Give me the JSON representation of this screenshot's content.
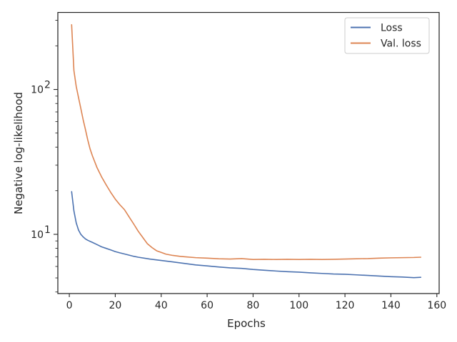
{
  "chart_data": {
    "type": "line",
    "title": "",
    "xlabel": "Epochs",
    "ylabel": "Negative log-likelihood",
    "xlim": [
      -5,
      161
    ],
    "ylim": [
      3.9,
      340
    ],
    "yscale": "log",
    "grid": false,
    "legend_position": "top-right",
    "x_ticks": [
      0,
      20,
      40,
      60,
      80,
      100,
      120,
      140,
      160
    ],
    "x_tick_labels": [
      "0",
      "20",
      "40",
      "60",
      "80",
      "100",
      "120",
      "140",
      "160"
    ],
    "y_major_ticks": [
      {
        "value": 10,
        "base": "10",
        "exponent": "1"
      },
      {
        "value": 100,
        "base": "10",
        "exponent": "2"
      }
    ],
    "y_minor_ticks": [
      4,
      5,
      6,
      7,
      8,
      9,
      20,
      30,
      40,
      50,
      60,
      70,
      80,
      90,
      200,
      300
    ],
    "series": [
      {
        "name": "Loss",
        "color": "#4c72b0",
        "points": [
          [
            1,
            19.7
          ],
          [
            2,
            14.5
          ],
          [
            3,
            12.0
          ],
          [
            4,
            10.7
          ],
          [
            5,
            10.0
          ],
          [
            6,
            9.6
          ],
          [
            7,
            9.3
          ],
          [
            8,
            9.1
          ],
          [
            10,
            8.8
          ],
          [
            12,
            8.5
          ],
          [
            14,
            8.2
          ],
          [
            16,
            8.0
          ],
          [
            18,
            7.8
          ],
          [
            20,
            7.6
          ],
          [
            22,
            7.45
          ],
          [
            25,
            7.25
          ],
          [
            28,
            7.05
          ],
          [
            30,
            6.95
          ],
          [
            35,
            6.75
          ],
          [
            40,
            6.6
          ],
          [
            45,
            6.45
          ],
          [
            50,
            6.3
          ],
          [
            55,
            6.15
          ],
          [
            60,
            6.05
          ],
          [
            65,
            5.95
          ],
          [
            70,
            5.87
          ],
          [
            75,
            5.82
          ],
          [
            80,
            5.72
          ],
          [
            85,
            5.65
          ],
          [
            90,
            5.58
          ],
          [
            95,
            5.52
          ],
          [
            100,
            5.48
          ],
          [
            105,
            5.42
          ],
          [
            110,
            5.37
          ],
          [
            115,
            5.32
          ],
          [
            120,
            5.3
          ],
          [
            125,
            5.25
          ],
          [
            130,
            5.2
          ],
          [
            135,
            5.15
          ],
          [
            140,
            5.1
          ],
          [
            145,
            5.07
          ],
          [
            150,
            5.02
          ],
          [
            153,
            5.05
          ]
        ]
      },
      {
        "name": "Val. loss",
        "color": "#dd8452",
        "points": [
          [
            1,
            280
          ],
          [
            2,
            135
          ],
          [
            3,
            105
          ],
          [
            4,
            88
          ],
          [
            5,
            74
          ],
          [
            6,
            62
          ],
          [
            7,
            53
          ],
          [
            8,
            45
          ],
          [
            9,
            39
          ],
          [
            10,
            35
          ],
          [
            12,
            29
          ],
          [
            14,
            25
          ],
          [
            16,
            22
          ],
          [
            18,
            19.5
          ],
          [
            20,
            17.5
          ],
          [
            22,
            16.0
          ],
          [
            24,
            14.8
          ],
          [
            26,
            13.2
          ],
          [
            28,
            11.8
          ],
          [
            30,
            10.5
          ],
          [
            32,
            9.5
          ],
          [
            34,
            8.6
          ],
          [
            36,
            8.1
          ],
          [
            38,
            7.7
          ],
          [
            40,
            7.5
          ],
          [
            42,
            7.3
          ],
          [
            45,
            7.15
          ],
          [
            48,
            7.05
          ],
          [
            50,
            7.0
          ],
          [
            55,
            6.9
          ],
          [
            60,
            6.85
          ],
          [
            65,
            6.78
          ],
          [
            70,
            6.75
          ],
          [
            75,
            6.8
          ],
          [
            80,
            6.7
          ],
          [
            85,
            6.72
          ],
          [
            90,
            6.7
          ],
          [
            95,
            6.72
          ],
          [
            100,
            6.7
          ],
          [
            105,
            6.72
          ],
          [
            110,
            6.7
          ],
          [
            115,
            6.72
          ],
          [
            120,
            6.75
          ],
          [
            125,
            6.78
          ],
          [
            130,
            6.8
          ],
          [
            135,
            6.85
          ],
          [
            140,
            6.88
          ],
          [
            145,
            6.9
          ],
          [
            150,
            6.92
          ],
          [
            153,
            6.95
          ]
        ]
      }
    ]
  }
}
